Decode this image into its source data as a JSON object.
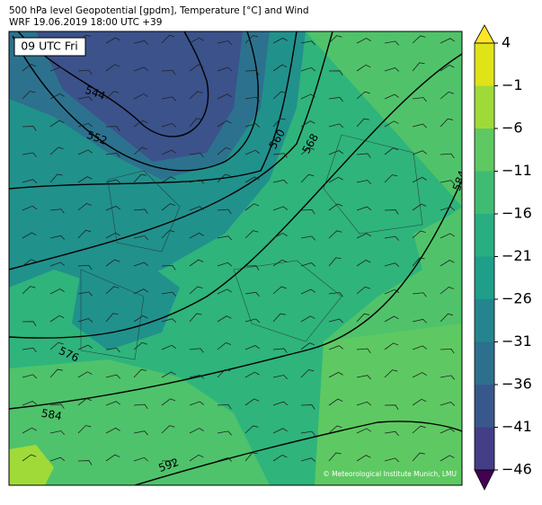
{
  "header": {
    "title_line1": "500 hPa level Geopotential [gpdm], Temperature [°C] and Wind",
    "title_line2": "WRF 19.06.2019 18:00 UTC +39"
  },
  "map": {
    "time_label": "09 UTC Fri",
    "contour_labels": [
      "544",
      "552",
      "560",
      "568",
      "576",
      "584",
      "584",
      "592"
    ],
    "credit": "© Meteorological Institute Munich, LMU"
  },
  "colorbar": {
    "ticks": [
      4,
      {
        "value": -1,
        "label": "−1"
      },
      {
        "value": -6,
        "label": "−6"
      },
      {
        "value": -11,
        "label": "−11"
      },
      {
        "value": -16,
        "label": "−16"
      },
      {
        "value": -21,
        "label": "−21"
      },
      {
        "value": -26,
        "label": "−26"
      },
      {
        "value": -31,
        "label": "−31"
      },
      {
        "value": -36,
        "label": "−36"
      },
      {
        "value": -41,
        "label": "−41"
      },
      {
        "value": -46,
        "label": "−46"
      }
    ]
  }
}
